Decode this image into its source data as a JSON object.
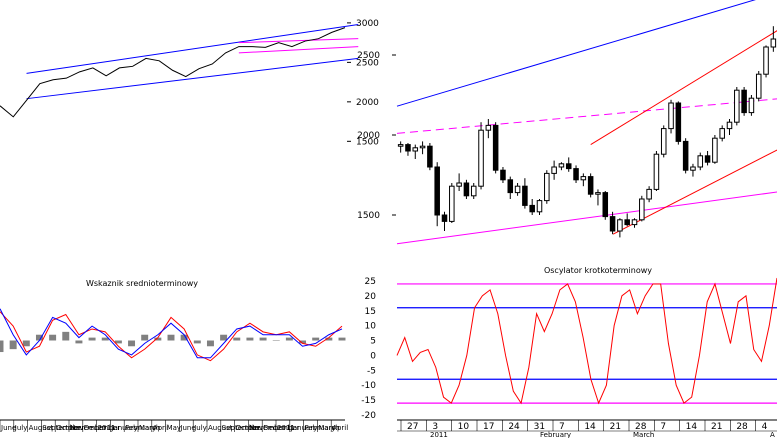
{
  "chart_data": [
    {
      "type": "line",
      "panel": "long-term price chart",
      "title": "",
      "y_ticks": [
        1500,
        2000,
        2500,
        3000
      ],
      "ylim": [
        1200,
        3100
      ],
      "x_labels": [
        "June",
        "July",
        "August",
        "September",
        "October",
        "November",
        "December",
        "2011",
        "January",
        "February",
        "March",
        "April",
        "May",
        "June",
        "July",
        "August",
        "September",
        "October",
        "November",
        "December",
        "2011",
        "January",
        "February",
        "March",
        "April"
      ],
      "series": [
        {
          "values": [
            1950,
            1810,
            2020,
            2230,
            2280,
            2300,
            2380,
            2430,
            2330,
            2430,
            2450,
            2550,
            2520,
            2400,
            2320,
            2420,
            2480,
            2620,
            2700,
            2700,
            2690,
            2750,
            2700,
            2770,
            2800,
            2880,
            2940
          ]
        }
      ],
      "trendlines": [
        {
          "color": "#0000ff",
          "from": [
            2,
            2360
          ],
          "to": [
            27,
            2980
          ]
        },
        {
          "color": "#0000ff",
          "from": [
            2,
            2040
          ],
          "to": [
            27,
            2550
          ]
        },
        {
          "color": "#ff00ff",
          "from": [
            18,
            2620
          ],
          "to": [
            27,
            2700
          ]
        },
        {
          "color": "#ff00ff",
          "from": [
            18,
            2750
          ],
          "to": [
            27,
            2800
          ]
        }
      ]
    },
    {
      "type": "line",
      "panel": "medium-term indicator",
      "title": "Wskaznik srednioterminowy",
      "series": [
        {
          "color": "#ff0000",
          "values": [
            1.0,
            0.5,
            -0.4,
            -0.2,
            0.7,
            0.9,
            0.2,
            0.4,
            0.3,
            -0.2,
            -0.6,
            -0.3,
            0.1,
            0.8,
            0.4,
            -0.5,
            -0.7,
            -0.3,
            0.3,
            0.6,
            0.3,
            0.2,
            0.3,
            -0.1,
            -0.2,
            0.1,
            0.5
          ]
        },
        {
          "color": "#0000ff",
          "values": [
            1.1,
            0.2,
            -0.5,
            0.0,
            0.8,
            0.6,
            0.1,
            0.5,
            0.2,
            -0.3,
            -0.5,
            -0.1,
            0.2,
            0.6,
            0.2,
            -0.6,
            -0.6,
            -0.1,
            0.4,
            0.5,
            0.2,
            0.2,
            0.2,
            -0.2,
            -0.1,
            0.2,
            0.4
          ]
        }
      ],
      "histogram": [
        -0.4,
        -0.3,
        -0.2,
        0.2,
        0.2,
        0.3,
        -0.1,
        0.1,
        0.1,
        -0.1,
        -0.2,
        0.2,
        0.1,
        0.2,
        0.2,
        -0.1,
        -0.2,
        0.2,
        0.1,
        0.1,
        0.1,
        0.0,
        0.1,
        -0.1,
        0.1,
        0.1,
        0.1
      ]
    },
    {
      "type": "candlestick",
      "panel": "short-term price chart",
      "title": "",
      "y_ticks": [
        1500,
        2000,
        2500
      ],
      "ylim": [
        1250,
        2750
      ],
      "candles": [
        [
          1930,
          1960,
          1890,
          1940
        ],
        [
          1940,
          1950,
          1870,
          1900
        ],
        [
          1900,
          1940,
          1850,
          1920
        ],
        [
          1920,
          1960,
          1880,
          1930
        ],
        [
          1930,
          1950,
          1780,
          1800
        ],
        [
          1800,
          1830,
          1430,
          1500
        ],
        [
          1500,
          1520,
          1400,
          1460
        ],
        [
          1460,
          1700,
          1450,
          1680
        ],
        [
          1680,
          1760,
          1650,
          1700
        ],
        [
          1700,
          1720,
          1600,
          1620
        ],
        [
          1620,
          1700,
          1600,
          1680
        ],
        [
          1680,
          2080,
          1660,
          2030
        ],
        [
          2030,
          2100,
          1980,
          2060
        ],
        [
          2060,
          2080,
          1760,
          1780
        ],
        [
          1780,
          1800,
          1700,
          1720
        ],
        [
          1720,
          1740,
          1600,
          1640
        ],
        [
          1640,
          1700,
          1620,
          1680
        ],
        [
          1680,
          1730,
          1540,
          1560
        ],
        [
          1560,
          1600,
          1500,
          1520
        ],
        [
          1520,
          1600,
          1500,
          1590
        ],
        [
          1590,
          1780,
          1570,
          1760
        ],
        [
          1760,
          1840,
          1720,
          1800
        ],
        [
          1800,
          1830,
          1780,
          1820
        ],
        [
          1820,
          1860,
          1770,
          1790
        ],
        [
          1790,
          1810,
          1700,
          1720
        ],
        [
          1720,
          1760,
          1680,
          1740
        ],
        [
          1740,
          1760,
          1610,
          1630
        ],
        [
          1630,
          1660,
          1560,
          1640
        ],
        [
          1640,
          1650,
          1470,
          1490
        ],
        [
          1490,
          1520,
          1380,
          1400
        ],
        [
          1400,
          1480,
          1360,
          1470
        ],
        [
          1470,
          1510,
          1430,
          1440
        ],
        [
          1440,
          1480,
          1420,
          1470
        ],
        [
          1470,
          1620,
          1460,
          1600
        ],
        [
          1600,
          1680,
          1580,
          1660
        ],
        [
          1660,
          1900,
          1650,
          1880
        ],
        [
          1880,
          2060,
          1860,
          2040
        ],
        [
          2040,
          2220,
          2010,
          2200
        ],
        [
          2200,
          2210,
          1940,
          1960
        ],
        [
          1960,
          1980,
          1760,
          1780
        ],
        [
          1780,
          1820,
          1740,
          1800
        ],
        [
          1800,
          1890,
          1780,
          1870
        ],
        [
          1870,
          1900,
          1810,
          1830
        ],
        [
          1830,
          2000,
          1820,
          1980
        ],
        [
          1980,
          2060,
          1960,
          2040
        ],
        [
          2040,
          2100,
          2000,
          2080
        ],
        [
          2080,
          2300,
          2060,
          2280
        ],
        [
          2280,
          2300,
          2120,
          2140
        ],
        [
          2140,
          2250,
          2120,
          2230
        ],
        [
          2230,
          2400,
          2210,
          2380
        ],
        [
          2380,
          2560,
          2360,
          2550
        ],
        [
          2550,
          2680,
          2520,
          2600
        ]
      ],
      "trendlines": [
        {
          "color": "#0000ff",
          "from": [
            0,
            2180
          ],
          "to": [
            52,
            2900
          ]
        },
        {
          "color": "#ff00ff",
          "style": "dashed",
          "from": [
            0,
            2010
          ],
          "to": [
            52,
            2230
          ]
        },
        {
          "color": "#ff00ff",
          "from": [
            0,
            1320
          ],
          "to": [
            52,
            1650
          ]
        },
        {
          "color": "#ff0000",
          "from": [
            26,
            1940
          ],
          "to": [
            52,
            2680
          ]
        },
        {
          "color": "#ff0000",
          "from": [
            29,
            1380
          ],
          "to": [
            52,
            1930
          ]
        }
      ]
    },
    {
      "type": "line",
      "panel": "short-term oscillator",
      "title": "Oscylator krotkoterminowy",
      "y_ticks": [
        25,
        20,
        15,
        10,
        5,
        0,
        -5,
        -10,
        -15,
        -20
      ],
      "ylim": [
        -21,
        27
      ],
      "x_ticks": [
        "27",
        "3",
        "10",
        "17",
        "24",
        "31",
        "7",
        "14",
        "21",
        "28",
        "7",
        "14",
        "21",
        "28",
        "4"
      ],
      "x_month_labels": [
        "2011",
        "February",
        "March",
        "A"
      ],
      "reference_lines": [
        {
          "color": "#ff00ff",
          "value": 24
        },
        {
          "color": "#0000ff",
          "value": 16
        },
        {
          "color": "#0000ff",
          "value": -8
        },
        {
          "color": "#ff00ff",
          "value": -16
        }
      ],
      "series": [
        {
          "color": "#ff0000",
          "values": [
            0,
            6,
            -2,
            1,
            2,
            -4,
            -14,
            -16,
            -10,
            0,
            16,
            20,
            22,
            14,
            0,
            -12,
            -16,
            -4,
            14,
            8,
            14,
            22,
            24,
            18,
            6,
            -8,
            -16,
            -10,
            10,
            20,
            22,
            14,
            20,
            24,
            24,
            4,
            -10,
            -16,
            -14,
            0,
            18,
            24,
            14,
            4,
            18,
            20,
            2,
            -2,
            10,
            26
          ]
        }
      ]
    }
  ]
}
